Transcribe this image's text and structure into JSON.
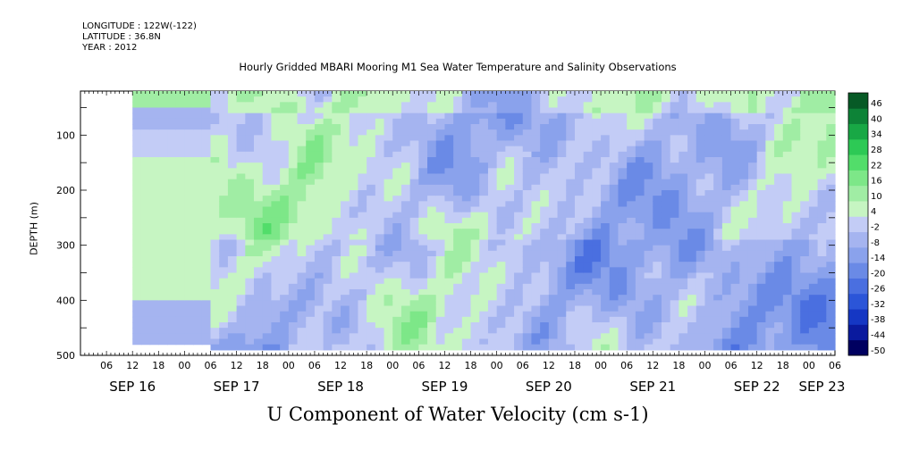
{
  "header": {
    "longitude": "LONGITUDE : 122W(-122)",
    "latitude": "LATITUDE : 36.8N",
    "year": "YEAR : 2012"
  },
  "chart_data": {
    "type": "heatmap",
    "title": "Hourly Gridded MBARI Mooring M1 Sea Water Temperature and Salinity Observations",
    "xlabel": "U Component of Water Velocity (cm s-1)",
    "ylabel": "DEPTH (m)",
    "x_range": [
      "SEP 16 00",
      "SEP 23 06"
    ],
    "x_hour_labels": [
      "06",
      "12",
      "18",
      "00",
      "06",
      "12",
      "18",
      "00",
      "06",
      "12",
      "18",
      "00",
      "06",
      "12",
      "18",
      "00",
      "06",
      "12",
      "18",
      "00",
      "06",
      "12",
      "18",
      "00",
      "06",
      "12",
      "18",
      "00",
      "06"
    ],
    "x_day_labels": [
      "SEP 16",
      "SEP 17",
      "SEP 18",
      "SEP 19",
      "SEP 20",
      "SEP 21",
      "SEP 22",
      "SEP 23"
    ],
    "y_range": [
      500,
      20
    ],
    "y_tick_labels": [
      "100",
      "200",
      "300",
      "400",
      "500"
    ],
    "y_ticks": [
      100,
      200,
      300,
      400,
      500
    ],
    "data_start": "SEP 16 12",
    "colorbar": {
      "levels": [
        -50,
        -44,
        -38,
        -32,
        -26,
        -20,
        -14,
        -8,
        -2,
        4,
        10,
        16,
        22,
        28,
        34,
        40,
        46
      ],
      "labels": [
        "46",
        "40",
        "34",
        "28",
        "22",
        "16",
        "10",
        "4",
        "-2",
        "-8",
        "-14",
        "-20",
        "-26",
        "-32",
        "-38",
        "-44",
        "-50"
      ],
      "colors": [
        "#000060",
        "#0a1a9e",
        "#1537c4",
        "#2b55d8",
        "#4a6fe0",
        "#6a8ae6",
        "#8aa2ec",
        "#a5b4f0",
        "#c3ccf6",
        "#c6f5c2",
        "#a0eda4",
        "#7de788",
        "#52dd6a",
        "#2dc955",
        "#18a845",
        "#0d8337",
        "#075a26"
      ]
    }
  }
}
